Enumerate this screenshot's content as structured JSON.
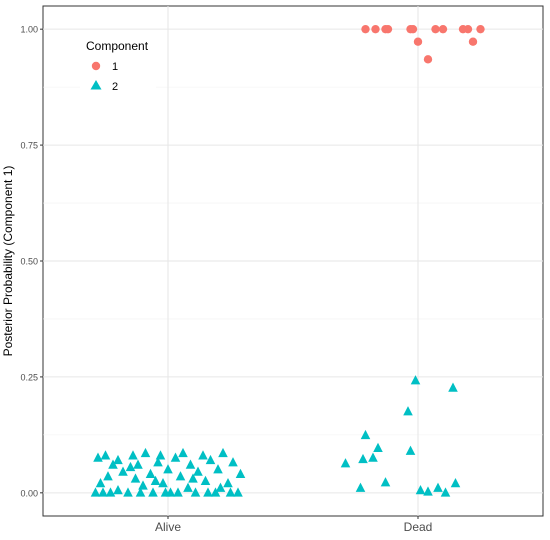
{
  "chart_data": {
    "type": "scatter",
    "title": "",
    "xlabel": "",
    "ylabel": "Posterior Probability (Component 1)",
    "categories": [
      "Alive",
      "Dead"
    ],
    "ylim": [
      -0.05,
      1.05
    ],
    "yticks": [
      0.0,
      0.25,
      0.5,
      0.75,
      1.0
    ],
    "ytick_labels": [
      "0.00",
      "0.25",
      "0.50",
      "0.75",
      "1.00"
    ],
    "grid": true,
    "legend": {
      "title": "Component",
      "position": "top-left"
    },
    "series": [
      {
        "name": "1",
        "shape": "circle",
        "color": "#F8766D",
        "points": [
          {
            "x": 1.79,
            "y": 1.0
          },
          {
            "x": 1.83,
            "y": 1.0
          },
          {
            "x": 1.87,
            "y": 1.0
          },
          {
            "x": 1.88,
            "y": 1.0
          },
          {
            "x": 1.97,
            "y": 1.0
          },
          {
            "x": 1.98,
            "y": 1.0
          },
          {
            "x": 2.0,
            "y": 0.973
          },
          {
            "x": 2.04,
            "y": 0.935
          },
          {
            "x": 2.07,
            "y": 1.0
          },
          {
            "x": 2.1,
            "y": 1.0
          },
          {
            "x": 2.18,
            "y": 1.0
          },
          {
            "x": 2.2,
            "y": 1.0
          },
          {
            "x": 2.22,
            "y": 0.973
          },
          {
            "x": 2.25,
            "y": 1.0
          }
        ]
      },
      {
        "name": "2",
        "shape": "triangle",
        "color": "#00BFC4",
        "points": [
          {
            "x": 0.71,
            "y": 0.0
          },
          {
            "x": 0.73,
            "y": 0.02
          },
          {
            "x": 0.72,
            "y": 0.075
          },
          {
            "x": 0.75,
            "y": 0.08
          },
          {
            "x": 0.76,
            "y": 0.035
          },
          {
            "x": 0.78,
            "y": 0.06
          },
          {
            "x": 0.8,
            "y": 0.005
          },
          {
            "x": 0.8,
            "y": 0.07
          },
          {
            "x": 0.82,
            "y": 0.045
          },
          {
            "x": 0.84,
            "y": 0.0
          },
          {
            "x": 0.86,
            "y": 0.08
          },
          {
            "x": 0.87,
            "y": 0.03
          },
          {
            "x": 0.88,
            "y": 0.06
          },
          {
            "x": 0.9,
            "y": 0.015
          },
          {
            "x": 0.91,
            "y": 0.085
          },
          {
            "x": 0.93,
            "y": 0.04
          },
          {
            "x": 0.94,
            "y": 0.0
          },
          {
            "x": 0.96,
            "y": 0.065
          },
          {
            "x": 0.97,
            "y": 0.08
          },
          {
            "x": 0.98,
            "y": 0.02
          },
          {
            "x": 1.0,
            "y": 0.05
          },
          {
            "x": 1.01,
            "y": 0.0
          },
          {
            "x": 1.03,
            "y": 0.075
          },
          {
            "x": 1.05,
            "y": 0.035
          },
          {
            "x": 1.06,
            "y": 0.085
          },
          {
            "x": 1.08,
            "y": 0.01
          },
          {
            "x": 1.09,
            "y": 0.06
          },
          {
            "x": 1.11,
            "y": 0.0
          },
          {
            "x": 1.12,
            "y": 0.045
          },
          {
            "x": 1.14,
            "y": 0.08
          },
          {
            "x": 1.15,
            "y": 0.025
          },
          {
            "x": 1.17,
            "y": 0.07
          },
          {
            "x": 1.19,
            "y": 0.0
          },
          {
            "x": 1.2,
            "y": 0.05
          },
          {
            "x": 1.22,
            "y": 0.085
          },
          {
            "x": 1.24,
            "y": 0.02
          },
          {
            "x": 1.26,
            "y": 0.065
          },
          {
            "x": 1.28,
            "y": 0.0
          },
          {
            "x": 1.29,
            "y": 0.04
          },
          {
            "x": 0.74,
            "y": 0.0
          },
          {
            "x": 0.77,
            "y": 0.0
          },
          {
            "x": 0.89,
            "y": 0.0
          },
          {
            "x": 0.99,
            "y": 0.0
          },
          {
            "x": 1.04,
            "y": 0.0
          },
          {
            "x": 1.16,
            "y": 0.0
          },
          {
            "x": 1.25,
            "y": 0.0
          },
          {
            "x": 0.85,
            "y": 0.055
          },
          {
            "x": 1.1,
            "y": 0.03
          },
          {
            "x": 1.21,
            "y": 0.01
          },
          {
            "x": 0.95,
            "y": 0.025
          },
          {
            "x": 1.71,
            "y": 0.063
          },
          {
            "x": 1.77,
            "y": 0.01
          },
          {
            "x": 1.78,
            "y": 0.072
          },
          {
            "x": 1.79,
            "y": 0.124
          },
          {
            "x": 1.82,
            "y": 0.075
          },
          {
            "x": 1.84,
            "y": 0.096
          },
          {
            "x": 1.87,
            "y": 0.022
          },
          {
            "x": 1.96,
            "y": 0.175
          },
          {
            "x": 1.97,
            "y": 0.09
          },
          {
            "x": 1.99,
            "y": 0.242
          },
          {
            "x": 2.01,
            "y": 0.005
          },
          {
            "x": 2.04,
            "y": 0.002
          },
          {
            "x": 2.08,
            "y": 0.01
          },
          {
            "x": 2.11,
            "y": 0.0
          },
          {
            "x": 2.14,
            "y": 0.226
          },
          {
            "x": 2.15,
            "y": 0.02
          }
        ]
      }
    ]
  }
}
